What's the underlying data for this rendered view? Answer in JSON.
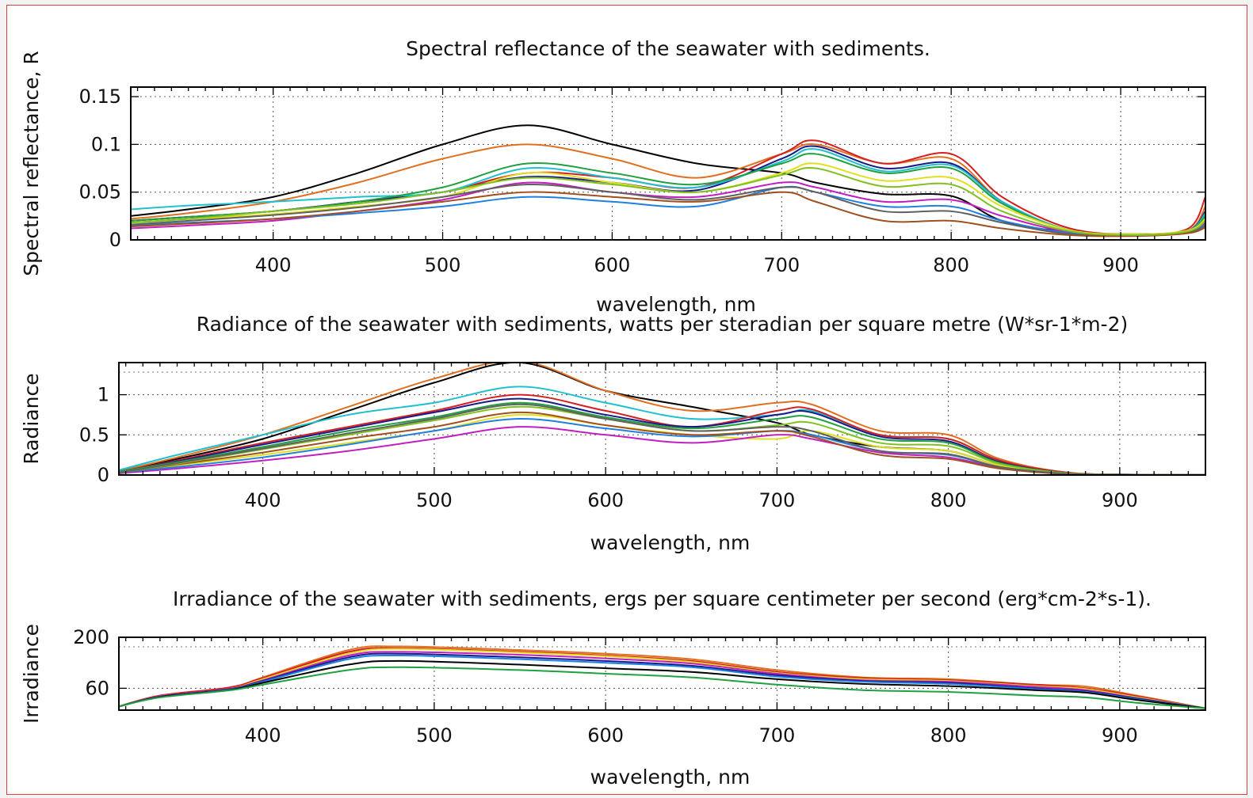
{
  "chart_data": [
    {
      "type": "line",
      "title": "Spectral reflectance of the seawater with sediments.",
      "xlabel": "wavelength, nm",
      "ylabel": "Spectral reflectance, R",
      "xlim": [
        316,
        950
      ],
      "ylim": [
        0,
        0.16
      ],
      "xticks": [
        400,
        500,
        600,
        700,
        800,
        900
      ],
      "yticks": [
        0,
        0.05,
        0.1,
        0.15
      ],
      "ytick_labels": [
        "0",
        "0.05",
        "0.1",
        "0.15"
      ],
      "grid": true,
      "x": [
        316,
        350,
        400,
        450,
        500,
        550,
        600,
        650,
        700,
        720,
        760,
        800,
        830,
        870,
        910,
        940,
        950
      ],
      "series": [
        {
          "color": "#000000",
          "values": [
            0.025,
            0.032,
            0.045,
            0.07,
            0.1,
            0.12,
            0.1,
            0.08,
            0.07,
            0.06,
            0.048,
            0.046,
            0.02,
            0.008,
            0.005,
            0.008,
            0.02
          ]
        },
        {
          "color": "#e07020",
          "values": [
            0.022,
            0.028,
            0.04,
            0.06,
            0.085,
            0.1,
            0.085,
            0.065,
            0.09,
            0.1,
            0.08,
            0.085,
            0.04,
            0.01,
            0.006,
            0.01,
            0.035
          ]
        },
        {
          "color": "#d42020",
          "values": [
            0.02,
            0.024,
            0.03,
            0.04,
            0.05,
            0.07,
            0.065,
            0.055,
            0.09,
            0.104,
            0.08,
            0.09,
            0.045,
            0.012,
            0.006,
            0.012,
            0.045
          ]
        },
        {
          "color": "#1a1a8a",
          "values": [
            0.02,
            0.024,
            0.03,
            0.04,
            0.05,
            0.066,
            0.06,
            0.052,
            0.085,
            0.098,
            0.075,
            0.08,
            0.04,
            0.01,
            0.006,
            0.01,
            0.03
          ]
        },
        {
          "color": "#20c0d0",
          "values": [
            0.032,
            0.036,
            0.04,
            0.045,
            0.05,
            0.075,
            0.065,
            0.055,
            0.082,
            0.095,
            0.072,
            0.078,
            0.04,
            0.01,
            0.006,
            0.01,
            0.028
          ]
        },
        {
          "color": "#20a040",
          "values": [
            0.02,
            0.024,
            0.03,
            0.04,
            0.055,
            0.08,
            0.07,
            0.058,
            0.08,
            0.09,
            0.07,
            0.075,
            0.038,
            0.01,
            0.006,
            0.01,
            0.025
          ]
        },
        {
          "color": "#e0e020",
          "values": [
            0.018,
            0.022,
            0.027,
            0.035,
            0.045,
            0.07,
            0.06,
            0.05,
            0.07,
            0.08,
            0.062,
            0.065,
            0.035,
            0.01,
            0.006,
            0.01,
            0.022
          ]
        },
        {
          "color": "#c020c0",
          "values": [
            0.012,
            0.015,
            0.02,
            0.03,
            0.042,
            0.06,
            0.05,
            0.045,
            0.06,
            0.055,
            0.04,
            0.042,
            0.025,
            0.008,
            0.005,
            0.008,
            0.018
          ]
        },
        {
          "color": "#2080e0",
          "values": [
            0.015,
            0.018,
            0.022,
            0.028,
            0.035,
            0.045,
            0.04,
            0.035,
            0.055,
            0.05,
            0.035,
            0.035,
            0.02,
            0.007,
            0.005,
            0.008,
            0.016
          ]
        },
        {
          "color": "#606060",
          "values": [
            0.016,
            0.02,
            0.026,
            0.034,
            0.045,
            0.058,
            0.05,
            0.042,
            0.055,
            0.05,
            0.03,
            0.03,
            0.018,
            0.006,
            0.005,
            0.008,
            0.015
          ]
        },
        {
          "color": "#a05020",
          "values": [
            0.014,
            0.017,
            0.022,
            0.03,
            0.04,
            0.05,
            0.045,
            0.04,
            0.05,
            0.04,
            0.02,
            0.02,
            0.012,
            0.005,
            0.004,
            0.007,
            0.013
          ]
        },
        {
          "color": "#80c020",
          "values": [
            0.018,
            0.022,
            0.03,
            0.038,
            0.05,
            0.065,
            0.058,
            0.05,
            0.068,
            0.075,
            0.056,
            0.058,
            0.03,
            0.009,
            0.005,
            0.009,
            0.02
          ]
        }
      ]
    },
    {
      "type": "line",
      "title": "Radiance of the seawater with sediments, watts per steradian per square metre (W*sr-1*m-2)",
      "xlabel": "wavelength, nm",
      "ylabel": "Radiance",
      "xlim": [
        316,
        950
      ],
      "ylim": [
        0,
        1.4
      ],
      "xticks": [
        400,
        500,
        600,
        700,
        800,
        900
      ],
      "yticks": [
        0,
        0.5,
        1
      ],
      "ytick_labels": [
        "0",
        "0.5",
        "1"
      ],
      "grid": true,
      "x": [
        316,
        350,
        400,
        450,
        500,
        550,
        600,
        650,
        700,
        720,
        760,
        800,
        830,
        870,
        910,
        950
      ],
      "series": [
        {
          "color": "#000000",
          "values": [
            0.05,
            0.2,
            0.45,
            0.8,
            1.15,
            1.4,
            1.05,
            0.85,
            0.65,
            0.5,
            0.35,
            0.3,
            0.12,
            0.02,
            0.005,
            0.002
          ]
        },
        {
          "color": "#e07020",
          "values": [
            0.05,
            0.22,
            0.5,
            0.85,
            1.2,
            1.42,
            1.05,
            0.8,
            0.9,
            0.88,
            0.55,
            0.5,
            0.2,
            0.03,
            0.005,
            0.002
          ]
        },
        {
          "color": "#20c0d0",
          "values": [
            0.06,
            0.25,
            0.5,
            0.75,
            0.9,
            1.1,
            0.9,
            0.7,
            0.75,
            0.8,
            0.5,
            0.45,
            0.18,
            0.03,
            0.005,
            0.002
          ]
        },
        {
          "color": "#d42020",
          "values": [
            0.04,
            0.18,
            0.4,
            0.6,
            0.8,
            1.0,
            0.8,
            0.6,
            0.8,
            0.82,
            0.5,
            0.45,
            0.18,
            0.03,
            0.005,
            0.002
          ]
        },
        {
          "color": "#1a1a8a",
          "values": [
            0.04,
            0.17,
            0.38,
            0.58,
            0.78,
            0.95,
            0.75,
            0.6,
            0.75,
            0.78,
            0.48,
            0.42,
            0.16,
            0.02,
            0.004,
            0.002
          ]
        },
        {
          "color": "#20a040",
          "values": [
            0.04,
            0.16,
            0.35,
            0.55,
            0.72,
            0.9,
            0.72,
            0.58,
            0.7,
            0.72,
            0.45,
            0.4,
            0.15,
            0.02,
            0.004,
            0.002
          ]
        },
        {
          "color": "#e0e020",
          "values": [
            0.03,
            0.12,
            0.25,
            0.4,
            0.55,
            0.75,
            0.62,
            0.5,
            0.45,
            0.55,
            0.35,
            0.3,
            0.12,
            0.02,
            0.004,
            0.002
          ]
        },
        {
          "color": "#c020c0",
          "values": [
            0.02,
            0.08,
            0.18,
            0.3,
            0.45,
            0.6,
            0.5,
            0.4,
            0.5,
            0.45,
            0.28,
            0.22,
            0.09,
            0.015,
            0.003,
            0.002
          ]
        },
        {
          "color": "#2080e0",
          "values": [
            0.03,
            0.1,
            0.22,
            0.38,
            0.55,
            0.7,
            0.58,
            0.48,
            0.55,
            0.5,
            0.3,
            0.25,
            0.1,
            0.015,
            0.003,
            0.002
          ]
        },
        {
          "color": "#a05020",
          "values": [
            0.03,
            0.13,
            0.28,
            0.45,
            0.6,
            0.78,
            0.62,
            0.5,
            0.55,
            0.48,
            0.25,
            0.2,
            0.08,
            0.01,
            0.003,
            0.002
          ]
        },
        {
          "color": "#80c020",
          "values": [
            0.03,
            0.14,
            0.32,
            0.5,
            0.68,
            0.85,
            0.7,
            0.55,
            0.62,
            0.65,
            0.4,
            0.36,
            0.14,
            0.02,
            0.004,
            0.002
          ]
        },
        {
          "color": "#606060",
          "values": [
            0.03,
            0.15,
            0.33,
            0.52,
            0.7,
            0.88,
            0.7,
            0.55,
            0.6,
            0.55,
            0.3,
            0.26,
            0.1,
            0.015,
            0.003,
            0.002
          ]
        }
      ]
    },
    {
      "type": "line",
      "title": "Irradiance of the seawater with sediments, ergs per square centimeter per second (erg*cm-2*s-1).",
      "xlabel": "wavelength, nm",
      "ylabel": "Irradiance",
      "xlim": [
        316,
        950
      ],
      "ylim": [
        0,
        200
      ],
      "xticks": [
        400,
        500,
        600,
        700,
        800,
        900
      ],
      "yticks": [
        60,
        200
      ],
      "ytick_labels": [
        "60",
        "200"
      ],
      "grid": true,
      "x": [
        316,
        340,
        380,
        400,
        450,
        480,
        550,
        600,
        650,
        700,
        750,
        800,
        850,
        880,
        910,
        950
      ],
      "series": [
        {
          "color": "#e07020",
          "values": [
            10,
            40,
            60,
            90,
            165,
            175,
            165,
            155,
            140,
            110,
            90,
            85,
            70,
            65,
            40,
            5
          ]
        },
        {
          "color": "#d42020",
          "values": [
            10,
            40,
            62,
            88,
            160,
            170,
            160,
            150,
            135,
            105,
            88,
            82,
            70,
            60,
            38,
            5
          ]
        },
        {
          "color": "#e0e020",
          "values": [
            10,
            38,
            58,
            85,
            155,
            168,
            158,
            148,
            132,
            102,
            85,
            80,
            66,
            58,
            35,
            5
          ]
        },
        {
          "color": "#c020c0",
          "values": [
            10,
            38,
            58,
            82,
            150,
            160,
            152,
            142,
            128,
            100,
            82,
            78,
            64,
            55,
            33,
            5
          ]
        },
        {
          "color": "#1a1a8a",
          "values": [
            10,
            37,
            57,
            80,
            145,
            155,
            145,
            135,
            122,
            96,
            80,
            75,
            60,
            52,
            32,
            5
          ]
        },
        {
          "color": "#2080e0",
          "values": [
            10,
            36,
            56,
            78,
            140,
            150,
            140,
            130,
            118,
            92,
            78,
            72,
            58,
            50,
            30,
            5
          ]
        },
        {
          "color": "#000000",
          "values": [
            10,
            36,
            55,
            75,
            125,
            135,
            125,
            115,
            105,
            85,
            72,
            66,
            55,
            48,
            28,
            5
          ]
        },
        {
          "color": "#20a040",
          "values": [
            10,
            35,
            54,
            70,
            110,
            118,
            110,
            100,
            90,
            70,
            55,
            50,
            40,
            35,
            20,
            5
          ]
        }
      ]
    }
  ]
}
